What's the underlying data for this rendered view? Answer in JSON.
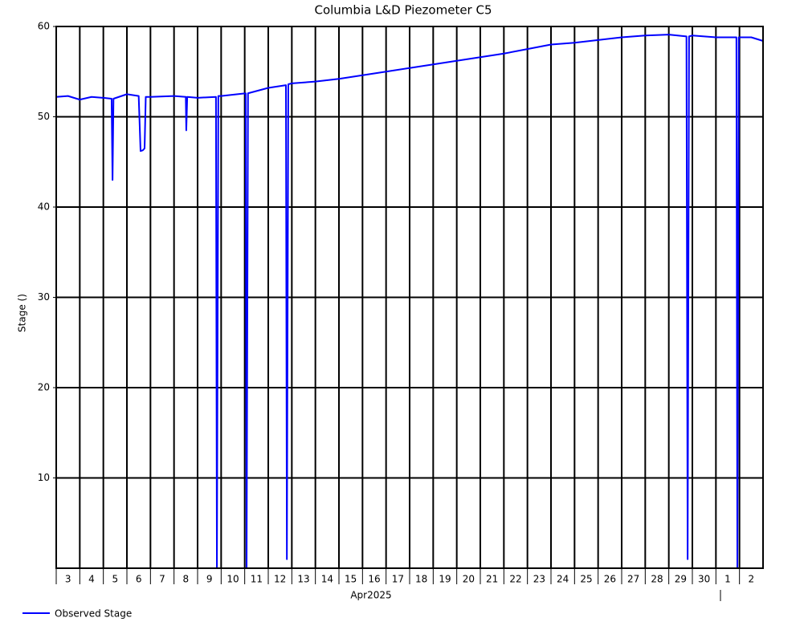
{
  "chart_data": {
    "type": "line",
    "title": "Columbia L&D Piezometer C5",
    "y_label": "Stage ()",
    "x_label": "Apr2025",
    "x": [
      0,
      0.5,
      1,
      1.5,
      2,
      2.35,
      2.39,
      2.43,
      3,
      3.5,
      3.58,
      3.68,
      3.75,
      3.8,
      4,
      5,
      5.5,
      5.52,
      5.56,
      6,
      6.78,
      6.82,
      6.88,
      7,
      8.04,
      8.08,
      8.14,
      9,
      9.75,
      9.79,
      9.85,
      10,
      11,
      12,
      13,
      14,
      15,
      16,
      17,
      18,
      19,
      20,
      21,
      22,
      23,
      24,
      25,
      26,
      26.75,
      26.8,
      26.86,
      27,
      28,
      28.87,
      28.91,
      28.97,
      29.5,
      30
    ],
    "series": [
      {
        "name": "Observed Stage",
        "color": "#0000ff",
        "values": [
          52.2,
          52.3,
          51.9,
          52.2,
          52.1,
          52.0,
          43.0,
          52.0,
          52.5,
          52.3,
          46.2,
          46.3,
          46.5,
          52.2,
          52.2,
          52.3,
          52.2,
          48.5,
          52.2,
          52.1,
          52.2,
          0,
          52.3,
          52.3,
          52.6,
          0,
          52.6,
          53.2,
          53.5,
          1,
          53.6,
          53.7,
          53.9,
          54.2,
          54.6,
          55.0,
          55.4,
          55.8,
          56.2,
          56.6,
          57.0,
          57.5,
          58.0,
          58.2,
          58.5,
          58.8,
          59.0,
          59.1,
          58.9,
          1,
          58.9,
          59.0,
          58.8,
          58.8,
          0,
          58.8,
          58.8,
          58.4
        ]
      }
    ],
    "xlim": [
      0,
      30
    ],
    "xticks": [
      {
        "value": 0,
        "label": "3"
      },
      {
        "value": 1,
        "label": "4"
      },
      {
        "value": 2,
        "label": "5"
      },
      {
        "value": 3,
        "label": "6"
      },
      {
        "value": 4,
        "label": "7"
      },
      {
        "value": 5,
        "label": "8"
      },
      {
        "value": 6,
        "label": "9"
      },
      {
        "value": 7,
        "label": "10"
      },
      {
        "value": 8,
        "label": "11"
      },
      {
        "value": 9,
        "label": "12"
      },
      {
        "value": 10,
        "label": "13"
      },
      {
        "value": 11,
        "label": "14"
      },
      {
        "value": 12,
        "label": "15"
      },
      {
        "value": 13,
        "label": "16"
      },
      {
        "value": 14,
        "label": "17"
      },
      {
        "value": 15,
        "label": "18"
      },
      {
        "value": 16,
        "label": "19"
      },
      {
        "value": 17,
        "label": "20"
      },
      {
        "value": 18,
        "label": "21"
      },
      {
        "value": 19,
        "label": "22"
      },
      {
        "value": 20,
        "label": "23"
      },
      {
        "value": 21,
        "label": "24"
      },
      {
        "value": 22,
        "label": "25"
      },
      {
        "value": 23,
        "label": "26"
      },
      {
        "value": 24,
        "label": "27"
      },
      {
        "value": 25,
        "label": "28"
      },
      {
        "value": 26,
        "label": "29"
      },
      {
        "value": 27,
        "label": "30"
      },
      {
        "value": 28,
        "label": "1"
      },
      {
        "value": 29,
        "label": "2"
      }
    ],
    "ylim": [
      0,
      60
    ],
    "yticks": [
      10,
      20,
      30,
      40,
      50,
      60
    ],
    "grid": true,
    "legend": "bottom-left"
  }
}
